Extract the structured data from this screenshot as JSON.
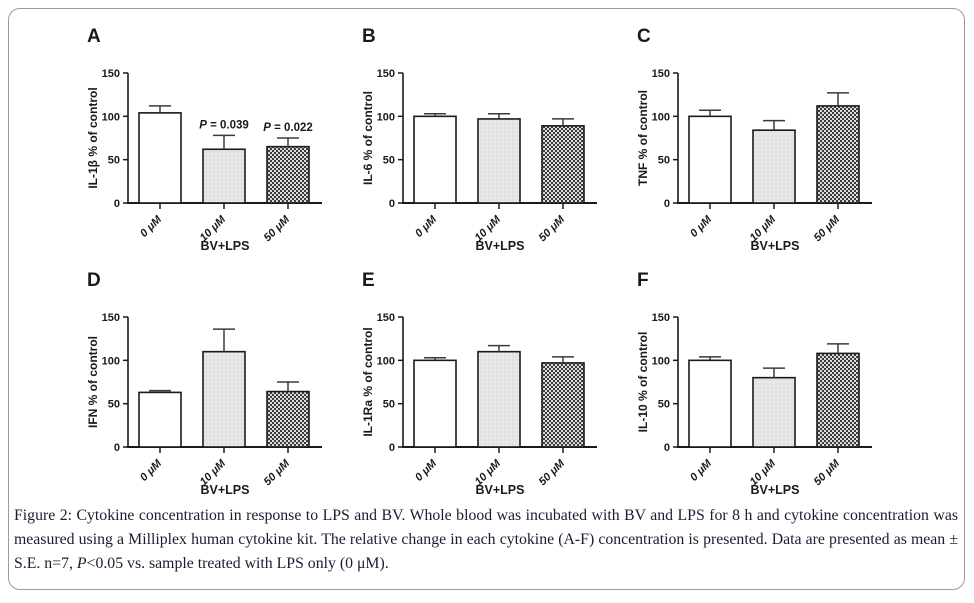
{
  "caption": {
    "text_before_p": "Figure 2: Cytokine concentration in response to LPS and BV. Whole blood was incubated with BV and LPS for 8 h and cytokine concentration was measured using a Milliplex human cytokine kit. The relative change in each cytokine (A-F) concentration is presented. Data are presented as mean ± S.E. n=7, ",
    "p_symbol": "P",
    "text_after_p": "<0.05 vs. sample treated with LPS only (0 μM)."
  },
  "colors": {
    "axis": "#1a1a1a",
    "error_bar": "#3a3a3a",
    "bar_outline": "#1a1a1a",
    "bar1_fill": "#ffffff",
    "bar2_fill": "#e3e3e3",
    "bar2_dot": "#f8f8f8",
    "bar3_light": "#dcdcdc",
    "bar3_dark": "#3c3c3c",
    "text": "#1a1a1a",
    "border": "#9b9b9b"
  },
  "chart_data": [
    {
      "type": "bar",
      "panel_label": "A",
      "ylabel": "IL-1β % of control",
      "xlabel": "BV+LPS",
      "categories": [
        "0 μM",
        "10 μM",
        "50 μM"
      ],
      "values": [
        104,
        62,
        65
      ],
      "errors": [
        8,
        16,
        10
      ],
      "annotations": [
        "",
        "P = 0.039",
        "P = 0.022"
      ],
      "ylim": [
        0,
        150
      ],
      "yticks": [
        0,
        50,
        100,
        150
      ],
      "grid": false,
      "legend": "none"
    },
    {
      "type": "bar",
      "panel_label": "B",
      "ylabel": "IL-6 % of control",
      "xlabel": "BV+LPS",
      "categories": [
        "0 μM",
        "10 μM",
        "50 μM"
      ],
      "values": [
        100,
        97,
        89
      ],
      "errors": [
        3,
        6,
        8
      ],
      "annotations": [
        "",
        "",
        ""
      ],
      "ylim": [
        0,
        150
      ],
      "yticks": [
        0,
        50,
        100,
        150
      ],
      "grid": false,
      "legend": "none"
    },
    {
      "type": "bar",
      "panel_label": "C",
      "ylabel": "TNF % of control",
      "xlabel": "BV+LPS",
      "categories": [
        "0 μM",
        "10 μM",
        "50 μM"
      ],
      "values": [
        100,
        84,
        112
      ],
      "errors": [
        7,
        11,
        15
      ],
      "annotations": [
        "",
        "",
        ""
      ],
      "ylim": [
        0,
        150
      ],
      "yticks": [
        0,
        50,
        100,
        150
      ],
      "grid": false,
      "legend": "none"
    },
    {
      "type": "bar",
      "panel_label": "D",
      "ylabel": "IFN % of control",
      "xlabel": "BV+LPS",
      "categories": [
        "0 μM",
        "10 μM",
        "50 μM"
      ],
      "values": [
        63,
        110,
        64
      ],
      "errors": [
        2,
        26,
        11
      ],
      "annotations": [
        "",
        "",
        ""
      ],
      "ylim": [
        0,
        150
      ],
      "yticks": [
        0,
        50,
        100,
        150
      ],
      "grid": false,
      "legend": "none"
    },
    {
      "type": "bar",
      "panel_label": "E",
      "ylabel": "IL-1Ra % of control",
      "xlabel": "BV+LPS",
      "categories": [
        "0 μM",
        "10 μM",
        "50 μM"
      ],
      "values": [
        100,
        110,
        97
      ],
      "errors": [
        3,
        7,
        7
      ],
      "annotations": [
        "",
        "",
        ""
      ],
      "ylim": [
        0,
        150
      ],
      "yticks": [
        0,
        50,
        100,
        150
      ],
      "grid": false,
      "legend": "none"
    },
    {
      "type": "bar",
      "panel_label": "F",
      "ylabel": "IL-10 % of control",
      "xlabel": "BV+LPS",
      "categories": [
        "0 μM",
        "10 μM",
        "50 μM"
      ],
      "values": [
        100,
        80,
        108
      ],
      "errors": [
        4,
        11,
        11
      ],
      "annotations": [
        "",
        "",
        ""
      ],
      "ylim": [
        0,
        150
      ],
      "yticks": [
        0,
        50,
        100,
        150
      ],
      "grid": false,
      "legend": "none"
    }
  ]
}
